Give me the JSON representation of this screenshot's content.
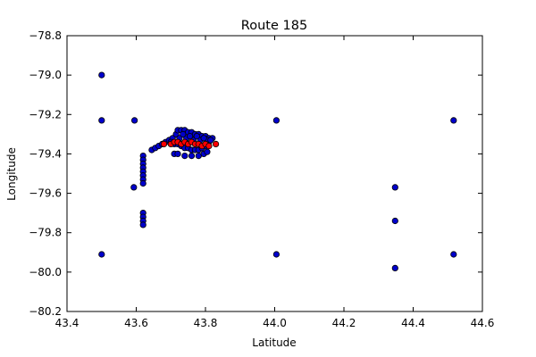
{
  "chart_data": {
    "type": "scatter",
    "title": "Route 185",
    "xlabel": "Latitude",
    "ylabel": "Longitude",
    "xlim": [
      43.4,
      44.6
    ],
    "ylim": [
      -80.2,
      -78.8
    ],
    "xticks": [
      43.4,
      43.6,
      43.8,
      44.0,
      44.2,
      44.4,
      44.6
    ],
    "yticks": [
      -78.8,
      -79.0,
      -79.2,
      -79.4,
      -79.6,
      -79.8,
      -80.0,
      -80.2
    ],
    "xtick_labels": [
      "43.4",
      "43.6",
      "43.8",
      "44.0",
      "44.2",
      "44.4",
      "44.6"
    ],
    "ytick_labels": [
      "−78.8",
      "−79.0",
      "−79.2",
      "−79.4",
      "−79.6",
      "−79.8",
      "−80.0",
      "−80.2"
    ],
    "grid": false,
    "series": [
      {
        "color": "#0000cc",
        "points": [
          [
            43.5,
            -79.0
          ],
          [
            43.5,
            -79.23
          ],
          [
            43.5,
            -79.91
          ],
          [
            43.595,
            -79.23
          ],
          [
            43.593,
            -79.57
          ],
          [
            44.005,
            -79.23
          ],
          [
            44.005,
            -79.91
          ],
          [
            44.348,
            -79.57
          ],
          [
            44.348,
            -79.74
          ],
          [
            44.348,
            -79.98
          ],
          [
            44.517,
            -79.23
          ],
          [
            44.517,
            -79.91
          ],
          [
            43.62,
            -79.41
          ],
          [
            43.62,
            -79.43
          ],
          [
            43.62,
            -79.45
          ],
          [
            43.62,
            -79.47
          ],
          [
            43.62,
            -79.49
          ],
          [
            43.62,
            -79.51
          ],
          [
            43.62,
            -79.53
          ],
          [
            43.62,
            -79.55
          ],
          [
            43.62,
            -79.7
          ],
          [
            43.62,
            -79.72
          ],
          [
            43.62,
            -79.74
          ],
          [
            43.62,
            -79.76
          ],
          [
            43.645,
            -79.38
          ],
          [
            43.655,
            -79.37
          ],
          [
            43.665,
            -79.36
          ],
          [
            43.675,
            -79.35
          ],
          [
            43.685,
            -79.34
          ],
          [
            43.695,
            -79.33
          ],
          [
            43.705,
            -79.32
          ],
          [
            43.715,
            -79.3
          ],
          [
            43.72,
            -79.28
          ],
          [
            43.73,
            -79.28
          ],
          [
            43.74,
            -79.28
          ],
          [
            43.75,
            -79.29
          ],
          [
            43.76,
            -79.29
          ],
          [
            43.77,
            -79.3
          ],
          [
            43.78,
            -79.3
          ],
          [
            43.79,
            -79.31
          ],
          [
            43.8,
            -79.31
          ],
          [
            43.81,
            -79.32
          ],
          [
            43.82,
            -79.32
          ],
          [
            43.7,
            -79.34
          ],
          [
            43.71,
            -79.35
          ],
          [
            43.72,
            -79.35
          ],
          [
            43.73,
            -79.36
          ],
          [
            43.74,
            -79.37
          ],
          [
            43.75,
            -79.37
          ],
          [
            43.76,
            -79.38
          ],
          [
            43.77,
            -79.38
          ],
          [
            43.78,
            -79.38
          ],
          [
            43.79,
            -79.37
          ],
          [
            43.8,
            -79.36
          ],
          [
            43.81,
            -79.34
          ],
          [
            43.71,
            -79.4
          ],
          [
            43.72,
            -79.4
          ],
          [
            43.74,
            -79.41
          ],
          [
            43.76,
            -79.41
          ],
          [
            43.78,
            -79.41
          ],
          [
            43.795,
            -79.4
          ],
          [
            43.805,
            -79.39
          ],
          [
            43.725,
            -79.32
          ],
          [
            43.745,
            -79.32
          ],
          [
            43.765,
            -79.33
          ],
          [
            43.785,
            -79.33
          ],
          [
            43.805,
            -79.33
          ],
          [
            43.735,
            -79.3
          ],
          [
            43.755,
            -79.31
          ],
          [
            43.775,
            -79.31
          ],
          [
            43.795,
            -79.32
          ],
          [
            43.815,
            -79.33
          ]
        ]
      },
      {
        "color": "#ff0000",
        "points": [
          [
            43.68,
            -79.35
          ],
          [
            43.7,
            -79.35
          ],
          [
            43.71,
            -79.34
          ],
          [
            43.72,
            -79.34
          ],
          [
            43.73,
            -79.35
          ],
          [
            43.74,
            -79.34
          ],
          [
            43.75,
            -79.35
          ],
          [
            43.76,
            -79.34
          ],
          [
            43.77,
            -79.35
          ],
          [
            43.78,
            -79.35
          ],
          [
            43.79,
            -79.36
          ],
          [
            43.8,
            -79.35
          ],
          [
            43.81,
            -79.36
          ],
          [
            43.83,
            -79.35
          ]
        ]
      }
    ]
  }
}
